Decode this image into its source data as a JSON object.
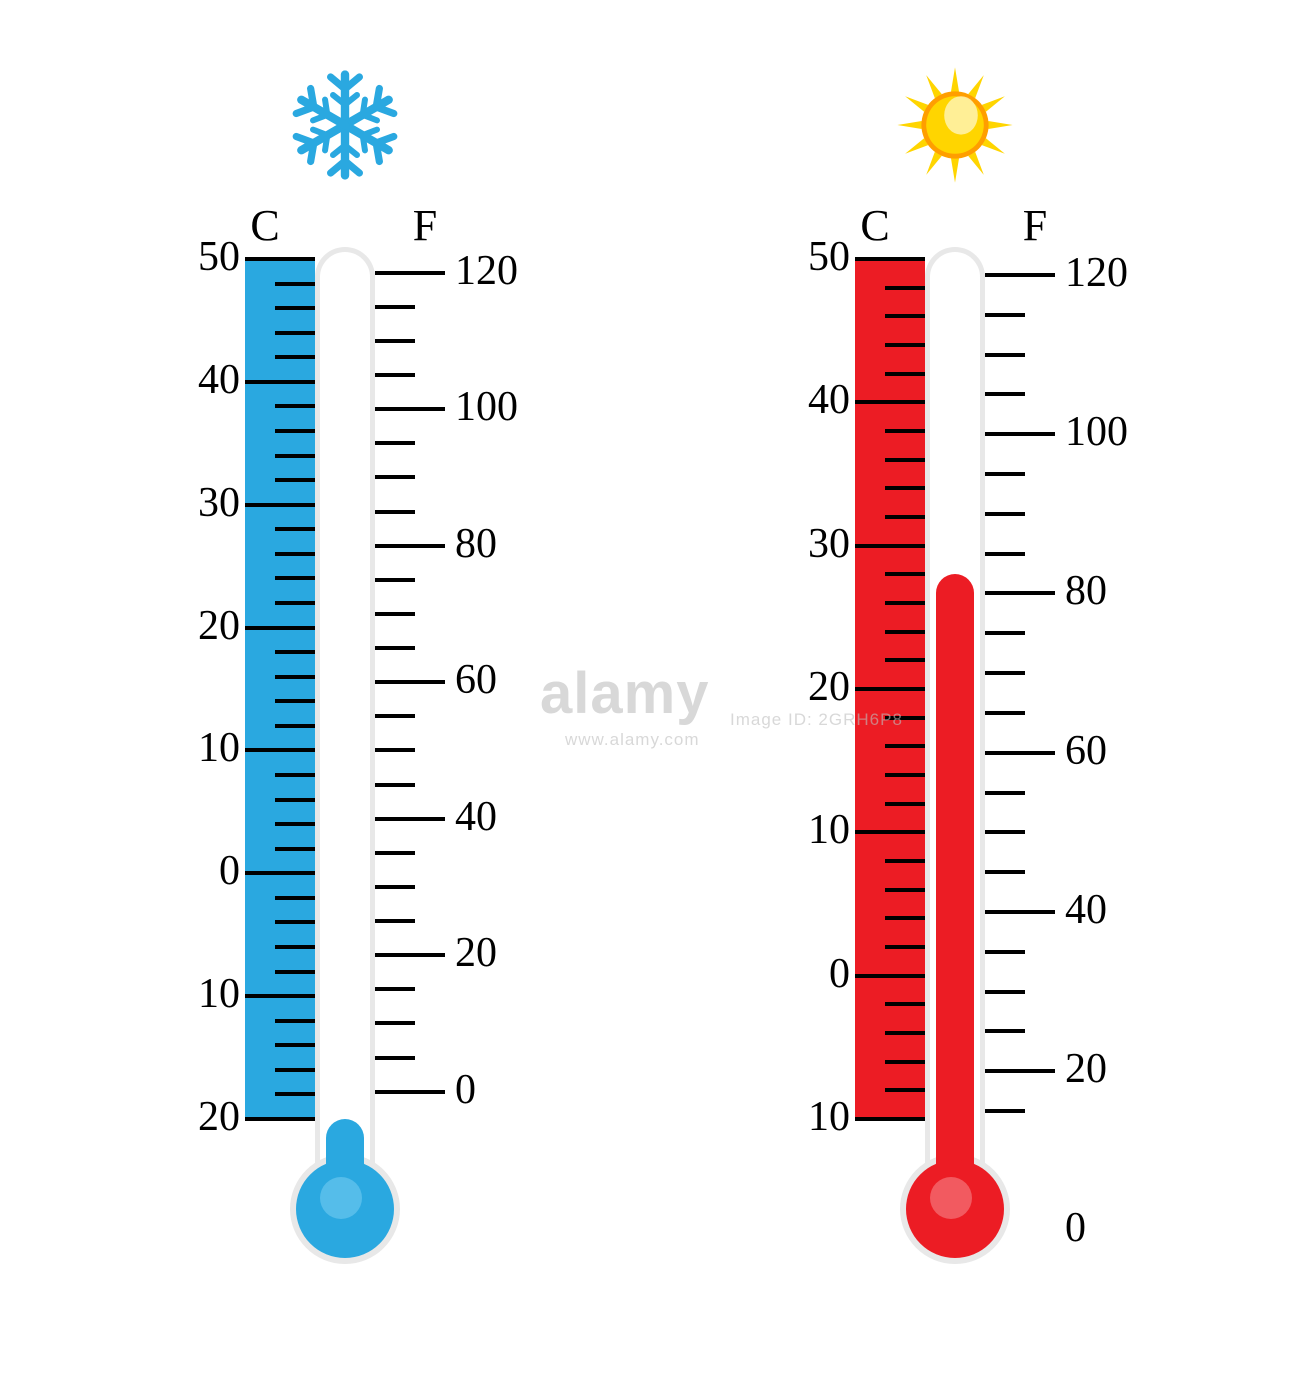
{
  "background_color": "#ffffff",
  "tick_color": "#000000",
  "label_color": "#000000",
  "label_fontsize": 42,
  "unit_label_fontsize": 44,
  "tube_outer_color": "#e8e8e8",
  "tube_inner_color": "#ffffff",
  "bulb_outer_color": "#e8e8e8",
  "thermometers": [
    {
      "id": "cold",
      "icon": "snowflake",
      "icon_color": "#2aa8e0",
      "scale_bg_color": "#2aa8e0",
      "mercury_color": "#2aa8e0",
      "bulb_fill_color": "#2aa8e0",
      "bulb_highlight_color": "#55bdea",
      "c_label": "C",
      "f_label": "F",
      "celsius": {
        "min": -20,
        "max": 50,
        "major_labels": [
          "50",
          "40",
          "30",
          "20",
          "10",
          "0",
          "10",
          "20"
        ],
        "major_values": [
          50,
          40,
          30,
          20,
          10,
          0,
          -10,
          -20
        ],
        "minor_step": 2
      },
      "fahrenheit": {
        "min": -10,
        "max": 120,
        "major_labels": [
          "120",
          "100",
          "80",
          "60",
          "40",
          "20",
          "0"
        ],
        "major_values": [
          120,
          100,
          80,
          60,
          40,
          20,
          0
        ],
        "minor_step": 5
      },
      "reading_celsius": -20
    },
    {
      "id": "hot",
      "icon": "sun",
      "icon_color": "#ffd500",
      "icon_accent": "#ff9e00",
      "sun_highlight": "#fff3b0",
      "scale_bg_color": "#ec1c24",
      "mercury_color": "#ec1c24",
      "bulb_fill_color": "#ec1c24",
      "bulb_highlight_color": "#f25a60",
      "c_label": "C",
      "f_label": "F",
      "celsius": {
        "min": -10,
        "max": 50,
        "major_labels": [
          "50",
          "40",
          "30",
          "20",
          "10",
          "0",
          "10"
        ],
        "major_values": [
          50,
          40,
          30,
          20,
          10,
          0,
          -10
        ],
        "minor_step": 2
      },
      "fahrenheit": {
        "min": -10,
        "max": 120,
        "major_labels": [
          "120",
          "100",
          "80",
          "60",
          "40",
          "20",
          "0"
        ],
        "major_values": [
          120,
          100,
          80,
          60,
          40,
          20,
          0
        ],
        "minor_step": 5
      },
      "reading_celsius": 28
    }
  ],
  "watermark": {
    "brand": "alamy",
    "brand_fontsize": 58,
    "id": "Image ID: 2GRH6P8",
    "id_fontsize": 17,
    "site": "www.alamy.com",
    "site_fontsize": 17,
    "color": "#bfbfbf",
    "opacity": 0.6
  }
}
